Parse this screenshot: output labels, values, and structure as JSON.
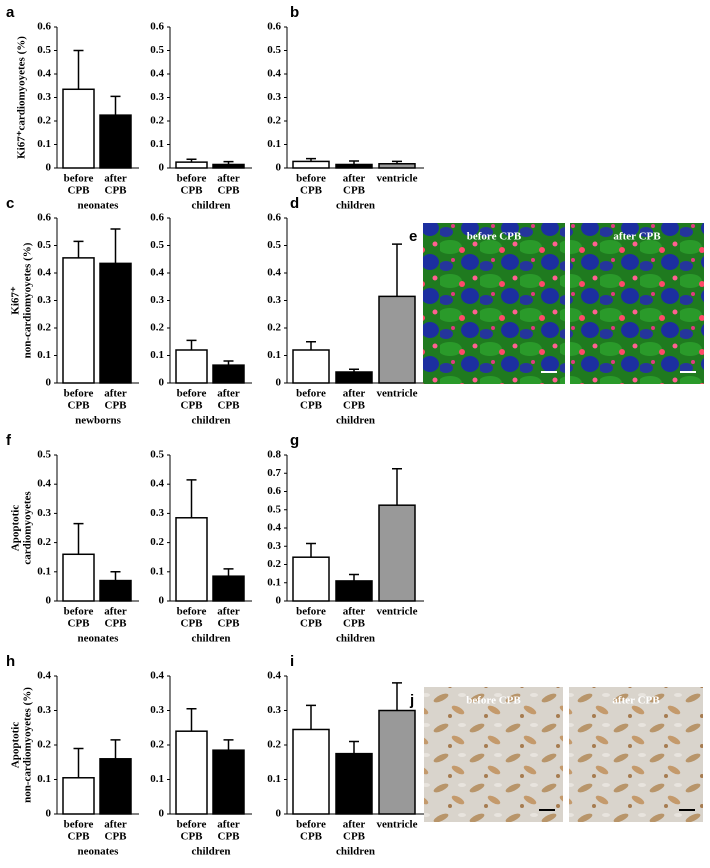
{
  "chart_data": [
    {
      "type": "bar",
      "panel": "a",
      "ylabel": [
        "Ki67⁺cardiomyoyetes (%)"
      ],
      "group": "neonates",
      "ylim": [
        0,
        0.6
      ],
      "yticks": [
        0,
        0.1,
        0.2,
        0.3,
        0.4,
        0.5,
        0.6
      ],
      "categories": [
        [
          "before",
          "CPB"
        ],
        [
          "after",
          "CPB"
        ]
      ],
      "values": [
        0.335,
        0.225
      ],
      "errors": [
        0.165,
        0.08
      ],
      "colors": [
        "#ffffff",
        "#000000"
      ]
    },
    {
      "type": "bar",
      "group": "children",
      "ylim": [
        0,
        0.6
      ],
      "yticks": [
        0,
        0.1,
        0.2,
        0.3,
        0.4,
        0.5,
        0.6
      ],
      "categories": [
        [
          "before",
          "CPB"
        ],
        [
          "after",
          "CPB"
        ]
      ],
      "values": [
        0.025,
        0.015
      ],
      "errors": [
        0.012,
        0.012
      ],
      "colors": [
        "#ffffff",
        "#000000"
      ]
    },
    {
      "type": "bar",
      "panel": "b",
      "group": "children",
      "ylim": [
        0,
        0.6
      ],
      "yticks": [
        0,
        0.1,
        0.2,
        0.3,
        0.4,
        0.5,
        0.6
      ],
      "categories": [
        [
          "before",
          "CPB"
        ],
        [
          "after",
          "CPB"
        ],
        [
          "ventricle"
        ]
      ],
      "values": [
        0.028,
        0.015,
        0.018
      ],
      "errors": [
        0.012,
        0.015,
        0.01
      ],
      "colors": [
        "#ffffff",
        "#000000",
        "#999999"
      ]
    },
    {
      "type": "bar",
      "panel": "c",
      "ylabel": [
        "Ki67⁺",
        "non-cardiomyoyetes (%)"
      ],
      "group": "newborns",
      "ylim": [
        0,
        0.6
      ],
      "yticks": [
        0,
        0.1,
        0.2,
        0.3,
        0.4,
        0.5,
        0.6
      ],
      "categories": [
        [
          "before",
          "CPB"
        ],
        [
          "after",
          "CPB"
        ]
      ],
      "values": [
        0.455,
        0.435
      ],
      "errors": [
        0.06,
        0.125
      ],
      "colors": [
        "#ffffff",
        "#000000"
      ]
    },
    {
      "type": "bar",
      "group": "children",
      "ylim": [
        0,
        0.6
      ],
      "yticks": [
        0,
        0.1,
        0.2,
        0.3,
        0.4,
        0.5,
        0.6
      ],
      "categories": [
        [
          "before",
          "CPB"
        ],
        [
          "after",
          "CPB"
        ]
      ],
      "values": [
        0.12,
        0.065
      ],
      "errors": [
        0.035,
        0.015
      ],
      "colors": [
        "#ffffff",
        "#000000"
      ]
    },
    {
      "type": "bar",
      "panel": "d",
      "group": "children",
      "ylim": [
        0,
        0.6
      ],
      "yticks": [
        0,
        0.1,
        0.2,
        0.3,
        0.4,
        0.5,
        0.6
      ],
      "categories": [
        [
          "before",
          "CPB"
        ],
        [
          "after",
          "CPB"
        ],
        [
          "ventricle"
        ]
      ],
      "values": [
        0.12,
        0.04,
        0.315
      ],
      "errors": [
        0.03,
        0.01,
        0.19
      ],
      "colors": [
        "#ffffff",
        "#000000",
        "#999999"
      ]
    },
    {
      "type": "bar",
      "panel": "f",
      "ylabel": [
        "Apoptotic",
        "cardiomyoyetes"
      ],
      "group": "neonates",
      "ylim": [
        0,
        0.5
      ],
      "yticks": [
        0,
        0.1,
        0.2,
        0.3,
        0.4,
        0.5
      ],
      "categories": [
        [
          "before",
          "CPB"
        ],
        [
          "after",
          "CPB"
        ]
      ],
      "values": [
        0.16,
        0.07
      ],
      "errors": [
        0.105,
        0.03
      ],
      "colors": [
        "#ffffff",
        "#000000"
      ]
    },
    {
      "type": "bar",
      "group": "children",
      "ylim": [
        0,
        0.5
      ],
      "yticks": [
        0,
        0.1,
        0.2,
        0.3,
        0.4,
        0.5
      ],
      "categories": [
        [
          "before",
          "CPB"
        ],
        [
          "after",
          "CPB"
        ]
      ],
      "values": [
        0.285,
        0.085
      ],
      "errors": [
        0.13,
        0.025
      ],
      "colors": [
        "#ffffff",
        "#000000"
      ]
    },
    {
      "type": "bar",
      "panel": "g",
      "group": "children",
      "ylim": [
        0,
        0.8
      ],
      "yticks": [
        0,
        0.1,
        0.2,
        0.3,
        0.4,
        0.5,
        0.6,
        0.7,
        0.8
      ],
      "categories": [
        [
          "before",
          "CPB"
        ],
        [
          "after",
          "CPB"
        ],
        [
          "ventricle"
        ]
      ],
      "values": [
        0.24,
        0.11,
        0.525
      ],
      "errors": [
        0.075,
        0.035,
        0.2
      ],
      "colors": [
        "#ffffff",
        "#000000",
        "#999999"
      ]
    },
    {
      "type": "bar",
      "panel": "h",
      "ylabel": [
        "Apoptotic",
        "non-cardiomyoyetes (%)"
      ],
      "group": "neonates",
      "ylim": [
        0,
        0.4
      ],
      "yticks": [
        0,
        0.1,
        0.2,
        0.3,
        0.4
      ],
      "categories": [
        [
          "before",
          "CPB"
        ],
        [
          "after",
          "CPB"
        ]
      ],
      "values": [
        0.105,
        0.16
      ],
      "errors": [
        0.085,
        0.055
      ],
      "colors": [
        "#ffffff",
        "#000000"
      ]
    },
    {
      "type": "bar",
      "group": "children",
      "ylim": [
        0,
        0.4
      ],
      "yticks": [
        0,
        0.1,
        0.2,
        0.3,
        0.4
      ],
      "categories": [
        [
          "before",
          "CPB"
        ],
        [
          "after",
          "CPB"
        ]
      ],
      "values": [
        0.24,
        0.185
      ],
      "errors": [
        0.065,
        0.03
      ],
      "colors": [
        "#ffffff",
        "#000000"
      ]
    },
    {
      "type": "bar",
      "panel": "i",
      "group": "children",
      "ylim": [
        0,
        0.4
      ],
      "yticks": [
        0,
        0.1,
        0.2,
        0.3,
        0.4
      ],
      "categories": [
        [
          "before",
          "CPB"
        ],
        [
          "after",
          "CPB"
        ],
        [
          "ventricle"
        ]
      ],
      "values": [
        0.245,
        0.175,
        0.3
      ],
      "errors": [
        0.07,
        0.035,
        0.08
      ],
      "colors": [
        "#ffffff",
        "#000000",
        "#999999"
      ]
    }
  ],
  "images": [
    {
      "panel": "e",
      "captions": [
        "before CPB",
        "after CPB"
      ]
    },
    {
      "panel": "j",
      "captions": [
        "before CPB",
        "after CPB"
      ]
    }
  ]
}
